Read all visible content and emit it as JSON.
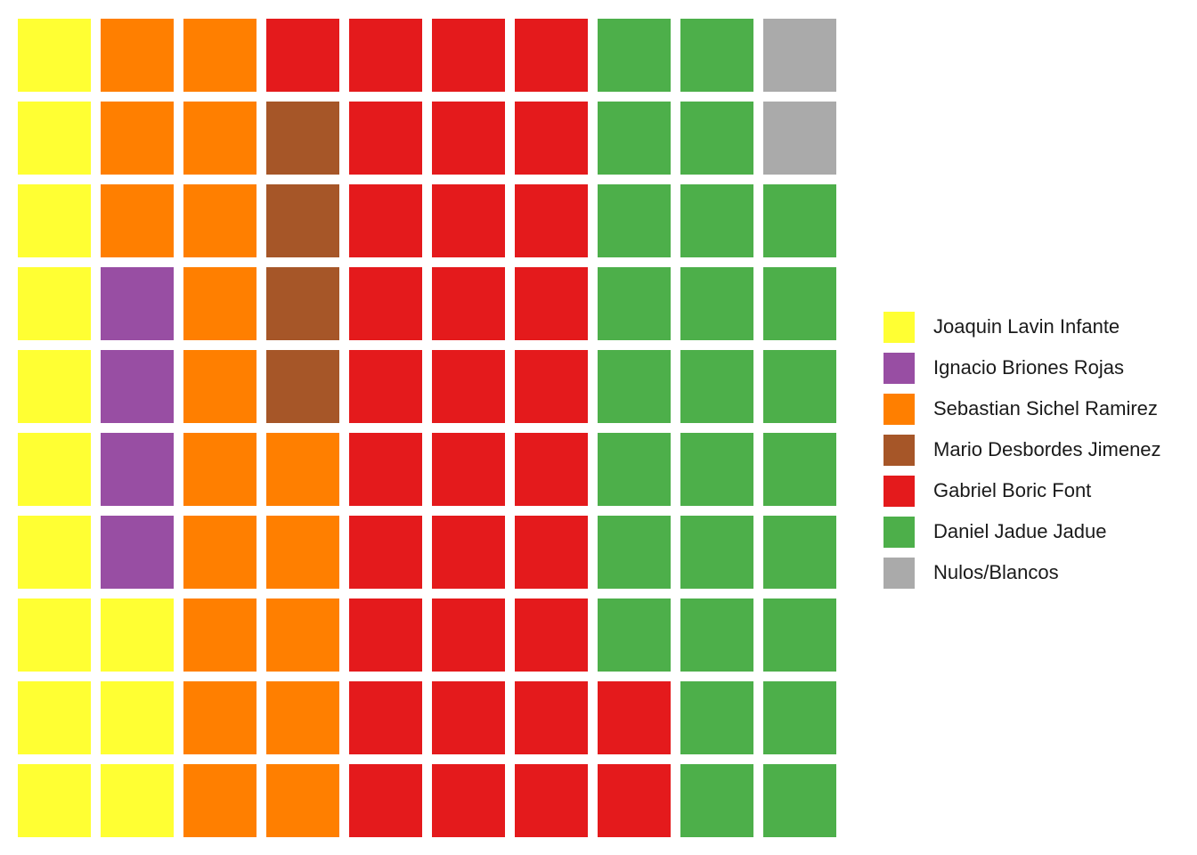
{
  "chart_data": {
    "type": "waffle",
    "grid": {
      "rows": 10,
      "cols": 10
    },
    "fill_order": "column-major, bottom-to-top, left-to-right",
    "legend_position": "right",
    "series": [
      {
        "name": "Joaquin Lavin Infante",
        "value": 13,
        "color": "#FFFF33"
      },
      {
        "name": "Ignacio Briones Rojas",
        "value": 4,
        "color": "#984EA3"
      },
      {
        "name": "Sebastian Sichel Ramirez",
        "value": 18,
        "color": "#FF7F00"
      },
      {
        "name": "Mario Desbordes Jimenez",
        "value": 4,
        "color": "#A65628"
      },
      {
        "name": "Gabriel Boric Font",
        "value": 33,
        "color": "#E41A1C"
      },
      {
        "name": "Daniel Jadue Jadue",
        "value": 26,
        "color": "#4DAF4A"
      },
      {
        "name": "Nulos/Blancos",
        "value": 2,
        "color": "#AAAAAA"
      }
    ]
  }
}
